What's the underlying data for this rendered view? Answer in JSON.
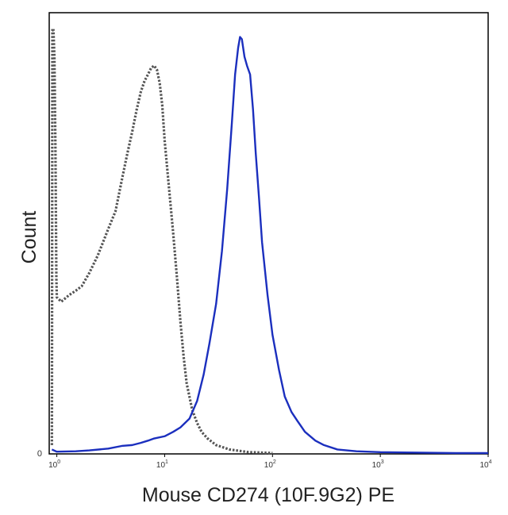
{
  "chart_data": {
    "type": "line",
    "xlabel": "Mouse CD274 (10F.9G2) PE",
    "ylabel": "Count",
    "x_scale": "log",
    "xlim": [
      0.85,
      10000
    ],
    "ylim": [
      0,
      1.0
    ],
    "y_tick_label": "0",
    "x_ticks": [
      {
        "value": 1,
        "base": "10",
        "exp": "0"
      },
      {
        "value": 10,
        "base": "10",
        "exp": "1"
      },
      {
        "value": 100,
        "base": "10",
        "exp": "2"
      },
      {
        "value": 1000,
        "base": "10",
        "exp": "3"
      },
      {
        "value": 10000,
        "base": "10",
        "exp": "4"
      }
    ],
    "grid": false,
    "legend": "none",
    "series": [
      {
        "style": "dotted",
        "color": "#555555",
        "points": [
          [
            0.9,
            0.02
          ],
          [
            0.91,
            0.96
          ],
          [
            0.93,
            0.96
          ],
          [
            0.95,
            0.9
          ],
          [
            0.97,
            0.7
          ],
          [
            0.99,
            0.4
          ],
          [
            1.0,
            0.355
          ],
          [
            1.1,
            0.345
          ],
          [
            1.3,
            0.36
          ],
          [
            1.5,
            0.37
          ],
          [
            1.7,
            0.38
          ],
          [
            2.0,
            0.41
          ],
          [
            2.4,
            0.45
          ],
          [
            3.0,
            0.51
          ],
          [
            3.5,
            0.55
          ],
          [
            4.0,
            0.62
          ],
          [
            4.5,
            0.68
          ],
          [
            5.0,
            0.73
          ],
          [
            5.5,
            0.78
          ],
          [
            6.0,
            0.82
          ],
          [
            6.5,
            0.845
          ],
          [
            7.0,
            0.86
          ],
          [
            7.5,
            0.875
          ],
          [
            8.0,
            0.88
          ],
          [
            8.5,
            0.87
          ],
          [
            9.0,
            0.84
          ],
          [
            9.5,
            0.79
          ],
          [
            10,
            0.71
          ],
          [
            11,
            0.6
          ],
          [
            12,
            0.5
          ],
          [
            13,
            0.4
          ],
          [
            14,
            0.3
          ],
          [
            15,
            0.22
          ],
          [
            16,
            0.16
          ],
          [
            18,
            0.1
          ],
          [
            20,
            0.07
          ],
          [
            22,
            0.05
          ],
          [
            25,
            0.035
          ],
          [
            30,
            0.02
          ],
          [
            40,
            0.01
          ],
          [
            60,
            0.004
          ],
          [
            100,
            0.002
          ]
        ]
      },
      {
        "style": "solid",
        "color": "#1b2fbe",
        "points": [
          [
            0.9,
            0.01
          ],
          [
            1,
            0.005
          ],
          [
            1.5,
            0.006
          ],
          [
            2,
            0.008
          ],
          [
            3,
            0.012
          ],
          [
            4,
            0.018
          ],
          [
            5,
            0.02
          ],
          [
            6,
            0.025
          ],
          [
            7,
            0.03
          ],
          [
            8,
            0.035
          ],
          [
            10,
            0.04
          ],
          [
            12,
            0.05
          ],
          [
            14,
            0.06
          ],
          [
            17,
            0.08
          ],
          [
            20,
            0.12
          ],
          [
            23,
            0.18
          ],
          [
            26,
            0.25
          ],
          [
            30,
            0.34
          ],
          [
            34,
            0.46
          ],
          [
            38,
            0.6
          ],
          [
            42,
            0.75
          ],
          [
            45,
            0.86
          ],
          [
            48,
            0.92
          ],
          [
            50,
            0.945
          ],
          [
            52,
            0.94
          ],
          [
            55,
            0.9
          ],
          [
            58,
            0.88
          ],
          [
            62,
            0.86
          ],
          [
            66,
            0.78
          ],
          [
            70,
            0.68
          ],
          [
            75,
            0.58
          ],
          [
            80,
            0.48
          ],
          [
            90,
            0.36
          ],
          [
            100,
            0.27
          ],
          [
            115,
            0.19
          ],
          [
            130,
            0.13
          ],
          [
            150,
            0.095
          ],
          [
            170,
            0.075
          ],
          [
            200,
            0.05
          ],
          [
            250,
            0.03
          ],
          [
            300,
            0.02
          ],
          [
            400,
            0.01
          ],
          [
            600,
            0.006
          ],
          [
            1000,
            0.004
          ],
          [
            2000,
            0.003
          ],
          [
            5000,
            0.002
          ],
          [
            10000,
            0.002
          ]
        ]
      }
    ]
  }
}
